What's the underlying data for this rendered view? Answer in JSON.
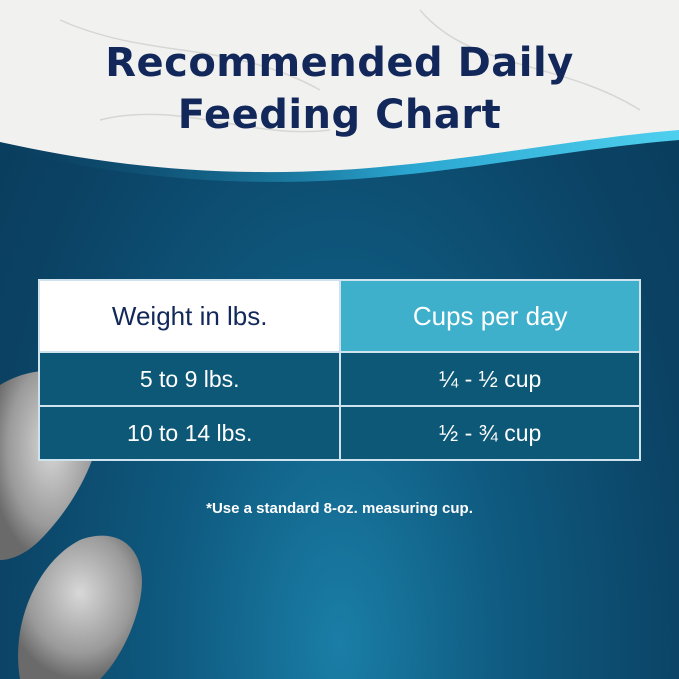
{
  "title_line1": "Recommended Daily",
  "title_line2": "Feeding Chart",
  "table": {
    "headers": [
      "Weight in lbs.",
      "Cups per day"
    ],
    "rows": [
      [
        "5 to 9 lbs.",
        "¼ - ½ cup"
      ],
      [
        "10 to 14 lbs.",
        "½ - ¾ cup"
      ]
    ]
  },
  "footnote": "*Use a standard 8-oz. measuring cup.",
  "colors": {
    "title": "#13285a",
    "header_accent": "#3fb0cc",
    "row_bg": "#0d5877",
    "background": "#0b4466"
  }
}
